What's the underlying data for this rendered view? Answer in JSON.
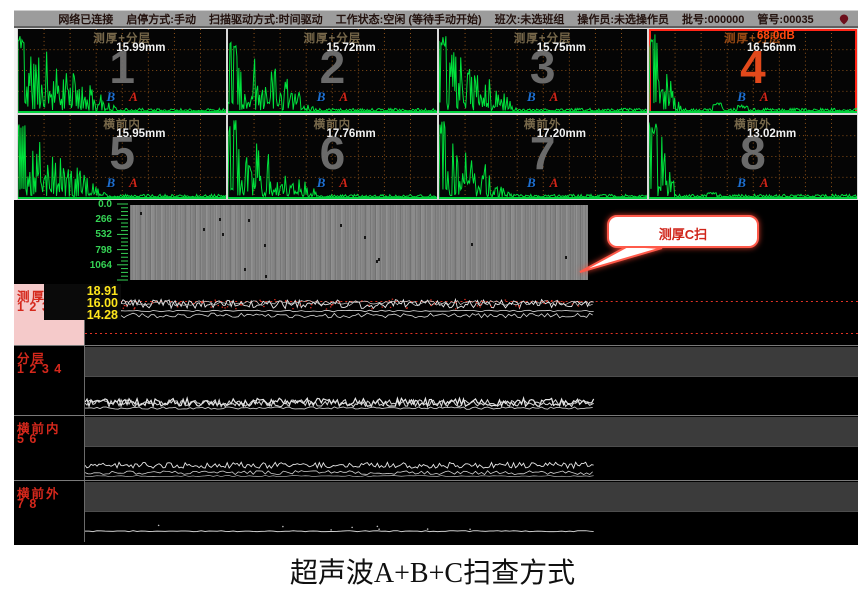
{
  "status_bar": {
    "items": [
      "网络已连接",
      "启停方式:手动",
      "扫描驱动方式:时间驱动",
      "工作状态:空闲 (等待手动开始)",
      "班次:未选班组",
      "操作员:未选操作员",
      "批号:000000",
      "管号:00035"
    ]
  },
  "ascan_panels": [
    {
      "number": "1",
      "title": "测厚+分层",
      "value": "15.99mm",
      "selected": false
    },
    {
      "number": "2",
      "title": "测厚+分层",
      "value": "15.72mm",
      "selected": false
    },
    {
      "number": "3",
      "title": "测厚+分层",
      "value": "15.75mm",
      "selected": false
    },
    {
      "number": "4",
      "title": "测厚+分层",
      "gain": "68.0dB",
      "value": "16.56mm",
      "selected": true
    },
    {
      "number": "5",
      "title": "横前内",
      "value": "15.95mm",
      "selected": false
    },
    {
      "number": "6",
      "title": "横前内",
      "value": "17.76mm",
      "selected": false
    },
    {
      "number": "7",
      "title": "横前外",
      "value": "17.20mm",
      "selected": false
    },
    {
      "number": "8",
      "title": "横前外",
      "value": "13.02mm",
      "selected": false
    }
  ],
  "gate_markers": {
    "b": "B",
    "a": "A"
  },
  "cscan": {
    "axis_ticks": [
      "0.0",
      "266",
      "532",
      "798",
      "1064"
    ],
    "callout_label": "测厚C扫"
  },
  "bscan_strips": [
    {
      "name": "测厚",
      "channels": "1 2 3",
      "values": [
        "18.91",
        "16.00",
        "14.28"
      ]
    },
    {
      "name": "分层",
      "channels": "1 2 3 4"
    },
    {
      "name": "横前内",
      "channels": "5 6"
    },
    {
      "name": "横前外",
      "channels": "7 8"
    }
  ],
  "caption": "超声波A+B+C扫查方式",
  "colors": {
    "waveform_green": "#00e23c",
    "grid_orange": "#b5681e",
    "selected_orange": "#ff480f",
    "axis_green": "#35d455",
    "alarm_red": "#d02518",
    "gate_blue": "#1e6fd0",
    "value_yellow": "#ffe71c",
    "cscan_gray": "#858585"
  }
}
